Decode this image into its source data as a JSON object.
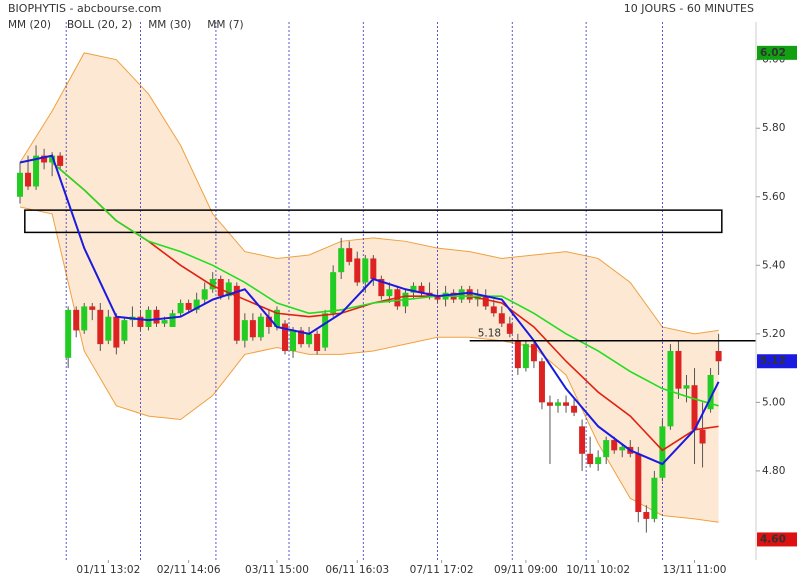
{
  "chart_data": {
    "type": "candlestick",
    "title": "BIOPHYTIS - abcbourse.com",
    "subtitle": "10 JOURS - 60 MINUTES",
    "up_color": "#22cc22",
    "down_color": "#dd2222",
    "open": [
      5.6,
      5.67,
      5.63,
      5.72,
      5.7,
      5.72,
      5.13,
      5.27,
      5.21,
      5.28,
      5.27,
      5.18,
      5.25,
      5.18,
      5.24,
      5.25,
      5.22,
      5.27,
      5.23,
      5.22,
      5.26,
      5.29,
      5.27,
      5.3,
      5.33,
      5.36,
      5.31,
      5.34,
      5.18,
      5.24,
      5.19,
      5.25,
      5.22,
      5.23,
      5.15,
      5.21,
      5.17,
      5.2,
      5.16,
      5.26,
      5.38,
      5.45,
      5.42,
      5.35,
      5.42,
      5.36,
      5.31,
      5.33,
      5.28,
      5.32,
      5.34,
      5.32,
      5.31,
      5.3,
      5.32,
      5.3,
      5.33,
      5.3,
      5.31,
      5.28,
      5.26,
      5.23,
      5.18,
      5.1,
      5.17,
      5.12,
      5.0,
      4.99,
      5.0,
      4.99,
      4.93,
      4.85,
      4.82,
      4.84,
      4.89,
      4.86,
      4.87,
      4.85,
      4.68,
      4.66,
      4.78,
      4.93,
      5.15,
      5.04,
      5.05,
      4.92,
      4.98,
      5.15
    ],
    "high": [
      5.7,
      5.72,
      5.75,
      5.74,
      5.73,
      5.73,
      5.28,
      5.28,
      5.29,
      5.29,
      5.29,
      5.27,
      5.26,
      5.25,
      5.28,
      5.27,
      5.28,
      5.28,
      5.25,
      5.27,
      5.3,
      5.3,
      5.32,
      5.35,
      5.38,
      5.37,
      5.36,
      5.35,
      5.26,
      5.26,
      5.26,
      5.27,
      5.28,
      5.24,
      5.22,
      5.22,
      5.22,
      5.21,
      5.27,
      5.4,
      5.48,
      5.47,
      5.44,
      5.43,
      5.43,
      5.37,
      5.35,
      5.34,
      5.33,
      5.35,
      5.35,
      5.35,
      5.33,
      5.34,
      5.33,
      5.34,
      5.34,
      5.33,
      5.33,
      5.3,
      5.28,
      5.25,
      5.2,
      5.18,
      5.18,
      5.13,
      5.02,
      5.01,
      5.02,
      5.01,
      4.95,
      4.9,
      4.86,
      4.9,
      4.9,
      4.88,
      4.89,
      4.87,
      4.7,
      4.8,
      4.95,
      5.17,
      5.18,
      5.08,
      5.1,
      5.0,
      5.1,
      5.2
    ],
    "low": [
      5.58,
      5.62,
      5.62,
      5.68,
      5.66,
      5.68,
      5.1,
      5.19,
      5.2,
      5.24,
      5.15,
      5.17,
      5.14,
      5.17,
      5.22,
      5.21,
      5.21,
      5.22,
      5.22,
      5.22,
      5.25,
      5.26,
      5.26,
      5.29,
      5.32,
      5.3,
      5.3,
      5.17,
      5.16,
      5.18,
      5.18,
      5.2,
      5.21,
      5.14,
      5.13,
      5.16,
      5.16,
      5.14,
      5.15,
      5.25,
      5.36,
      5.4,
      5.34,
      5.32,
      5.34,
      5.3,
      5.29,
      5.27,
      5.26,
      5.3,
      5.31,
      5.3,
      5.29,
      5.28,
      5.29,
      5.29,
      5.29,
      5.28,
      5.27,
      5.25,
      5.22,
      5.19,
      5.08,
      5.09,
      5.1,
      4.98,
      4.82,
      4.97,
      4.97,
      4.96,
      4.8,
      4.81,
      4.8,
      4.82,
      4.85,
      4.84,
      4.84,
      4.65,
      4.62,
      4.65,
      4.77,
      4.92,
      5.01,
      5.0,
      4.82,
      4.81,
      4.97,
      5.08
    ],
    "close": [
      5.67,
      5.63,
      5.72,
      5.7,
      5.72,
      5.69,
      5.27,
      5.21,
      5.28,
      5.27,
      5.17,
      5.25,
      5.16,
      5.24,
      5.25,
      5.22,
      5.27,
      5.23,
      5.24,
      5.26,
      5.29,
      5.27,
      5.3,
      5.33,
      5.36,
      5.31,
      5.35,
      5.18,
      5.24,
      5.19,
      5.25,
      5.22,
      5.27,
      5.15,
      5.21,
      5.17,
      5.2,
      5.15,
      5.26,
      5.38,
      5.45,
      5.41,
      5.35,
      5.42,
      5.36,
      5.31,
      5.33,
      5.28,
      5.32,
      5.34,
      5.32,
      5.31,
      5.3,
      5.32,
      5.3,
      5.33,
      5.3,
      5.31,
      5.28,
      5.26,
      5.23,
      5.2,
      5.1,
      5.17,
      5.12,
      5.0,
      4.99,
      5.0,
      4.99,
      4.97,
      4.85,
      4.82,
      4.84,
      4.89,
      4.86,
      4.87,
      4.85,
      4.68,
      4.66,
      4.78,
      4.93,
      5.15,
      5.04,
      5.05,
      4.92,
      4.88,
      5.08,
      5.12
    ],
    "series": [
      {
        "name": "MM (20)",
        "color": "#e02010",
        "x": [
          4,
          8,
          12,
          16,
          20,
          24,
          28,
          32,
          36,
          40,
          44,
          48,
          52,
          56,
          60,
          64,
          68,
          72,
          76,
          80,
          84,
          87
        ],
        "values": [
          5.7,
          5.62,
          5.53,
          5.47,
          5.4,
          5.34,
          5.3,
          5.26,
          5.25,
          5.26,
          5.29,
          5.31,
          5.31,
          5.31,
          5.29,
          5.22,
          5.12,
          5.03,
          4.96,
          4.86,
          4.92,
          4.93
        ]
      },
      {
        "name": "MM (30)",
        "color": "#22dd22",
        "x": [
          4,
          8,
          12,
          16,
          20,
          24,
          28,
          32,
          36,
          40,
          44,
          48,
          52,
          56,
          60,
          64,
          68,
          72,
          76,
          80,
          84,
          87
        ],
        "values": [
          5.7,
          5.62,
          5.53,
          5.47,
          5.44,
          5.4,
          5.35,
          5.29,
          5.26,
          5.27,
          5.29,
          5.3,
          5.31,
          5.31,
          5.31,
          5.26,
          5.2,
          5.15,
          5.09,
          5.04,
          5.01,
          4.99
        ]
      },
      {
        "name": "MM (7)",
        "color": "#1a1ae0",
        "x": [
          0,
          4,
          8,
          12,
          16,
          20,
          24,
          28,
          32,
          36,
          40,
          44,
          48,
          52,
          56,
          60,
          64,
          68,
          72,
          76,
          80,
          84,
          87
        ],
        "values": [
          5.7,
          5.72,
          5.45,
          5.25,
          5.24,
          5.25,
          5.3,
          5.33,
          5.22,
          5.2,
          5.26,
          5.36,
          5.33,
          5.31,
          5.32,
          5.3,
          5.18,
          5.04,
          4.93,
          4.86,
          4.82,
          4.92,
          5.06
        ]
      }
    ],
    "band": {
      "name": "BOLL (20, 2)",
      "color": "#f0a040",
      "fill": "#fde3c8",
      "x": [
        0,
        4,
        8,
        12,
        16,
        20,
        24,
        28,
        32,
        36,
        40,
        44,
        48,
        52,
        56,
        60,
        64,
        68,
        72,
        76,
        80,
        84,
        87
      ],
      "upper": [
        5.7,
        5.85,
        6.02,
        6.0,
        5.9,
        5.75,
        5.55,
        5.44,
        5.42,
        5.43,
        5.47,
        5.48,
        5.47,
        5.45,
        5.44,
        5.42,
        5.43,
        5.44,
        5.42,
        5.35,
        5.22,
        5.2,
        5.21
      ],
      "lower": [
        5.57,
        5.55,
        5.15,
        4.99,
        4.96,
        4.95,
        5.02,
        5.14,
        5.16,
        5.14,
        5.14,
        5.15,
        5.17,
        5.19,
        5.19,
        5.18,
        5.16,
        5.08,
        4.88,
        4.72,
        4.67,
        4.66,
        4.65
      ]
    },
    "ylim": [
      4.54,
      6.11
    ],
    "yticks": [
      {
        "value": 4.8,
        "label": "4.80"
      },
      {
        "value": 5.0,
        "label": "5.00"
      },
      {
        "value": 5.2,
        "label": "5.20"
      },
      {
        "value": 5.4,
        "label": "5.40"
      },
      {
        "value": 5.6,
        "label": "5.60"
      },
      {
        "value": 5.8,
        "label": "5.80"
      },
      {
        "value": 6.0,
        "label": "6.00"
      }
    ],
    "xticks": [
      {
        "value": 11,
        "label": "01/11 13:02"
      },
      {
        "value": 21,
        "label": "02/11 14:06"
      },
      {
        "value": 32,
        "label": "03/11 15:00"
      },
      {
        "value": 42,
        "label": "06/11 16:03"
      },
      {
        "value": 52.5,
        "label": "07/11 17:02"
      },
      {
        "value": 63,
        "label": "09/11 09:00"
      },
      {
        "value": 72,
        "label": "10/11 10:02"
      },
      {
        "value": 84,
        "label": "13/11 11:00"
      }
    ],
    "day_breaks": [
      5.75,
      15,
      24.4,
      33.5,
      42.75,
      52,
      61.3,
      70.5,
      80
    ],
    "hline": {
      "value": 5.18,
      "label": "5.18"
    },
    "box": {
      "xlim": [
        0.6,
        87.4
      ],
      "ylim": [
        5.496,
        5.561
      ]
    },
    "price_labels": [
      {
        "value": 6.02,
        "label": "6.02",
        "color": "#11a011"
      },
      {
        "value": 5.12,
        "label": "5.12",
        "color": "#1a1ae0"
      },
      {
        "value": 4.6,
        "label": "4.60",
        "color": "#dd1111"
      }
    ]
  }
}
